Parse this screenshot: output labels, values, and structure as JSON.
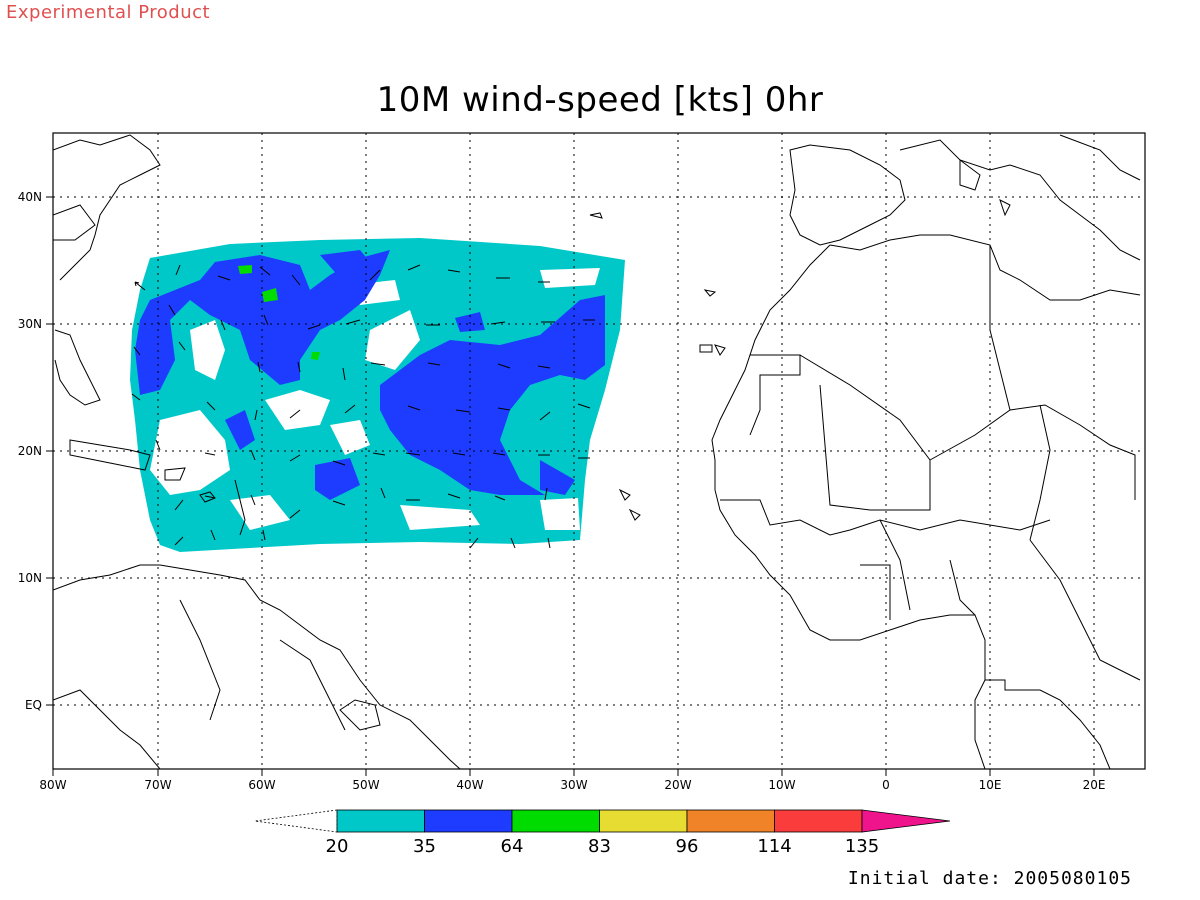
{
  "header": {
    "product_label": "Experimental Product",
    "title": "10M wind-speed [kts] 0hr"
  },
  "footer": {
    "initial_date": "Initial date: 2005080105"
  },
  "map": {
    "lon_range": [
      -80,
      25
    ],
    "lat_range": [
      -5,
      45
    ],
    "lon_ticks": [
      {
        "value": -80,
        "label": "80W"
      },
      {
        "value": -70,
        "label": "70W"
      },
      {
        "value": -60,
        "label": "60W"
      },
      {
        "value": -50,
        "label": "50W"
      },
      {
        "value": -40,
        "label": "40W"
      },
      {
        "value": -30,
        "label": "30W"
      },
      {
        "value": -20,
        "label": "20W"
      },
      {
        "value": -10,
        "label": "10W"
      },
      {
        "value": 0,
        "label": "0"
      },
      {
        "value": 10,
        "label": "10E"
      },
      {
        "value": 20,
        "label": "20E"
      }
    ],
    "lat_ticks": [
      {
        "value": 40,
        "label": "40N"
      },
      {
        "value": 30,
        "label": "30N"
      },
      {
        "value": 20,
        "label": "20N"
      },
      {
        "value": 10,
        "label": "10N"
      },
      {
        "value": 0,
        "label": "EQ"
      }
    ],
    "grid": true,
    "colorbar": {
      "levels": [
        "20",
        "35",
        "64",
        "83",
        "96",
        "114",
        "135"
      ],
      "colors": [
        "#00c8c8",
        "#1e3cff",
        "#00dc00",
        "#e6dc32",
        "#f08228",
        "#fa3c3c",
        "#f0148c"
      ]
    }
  }
}
